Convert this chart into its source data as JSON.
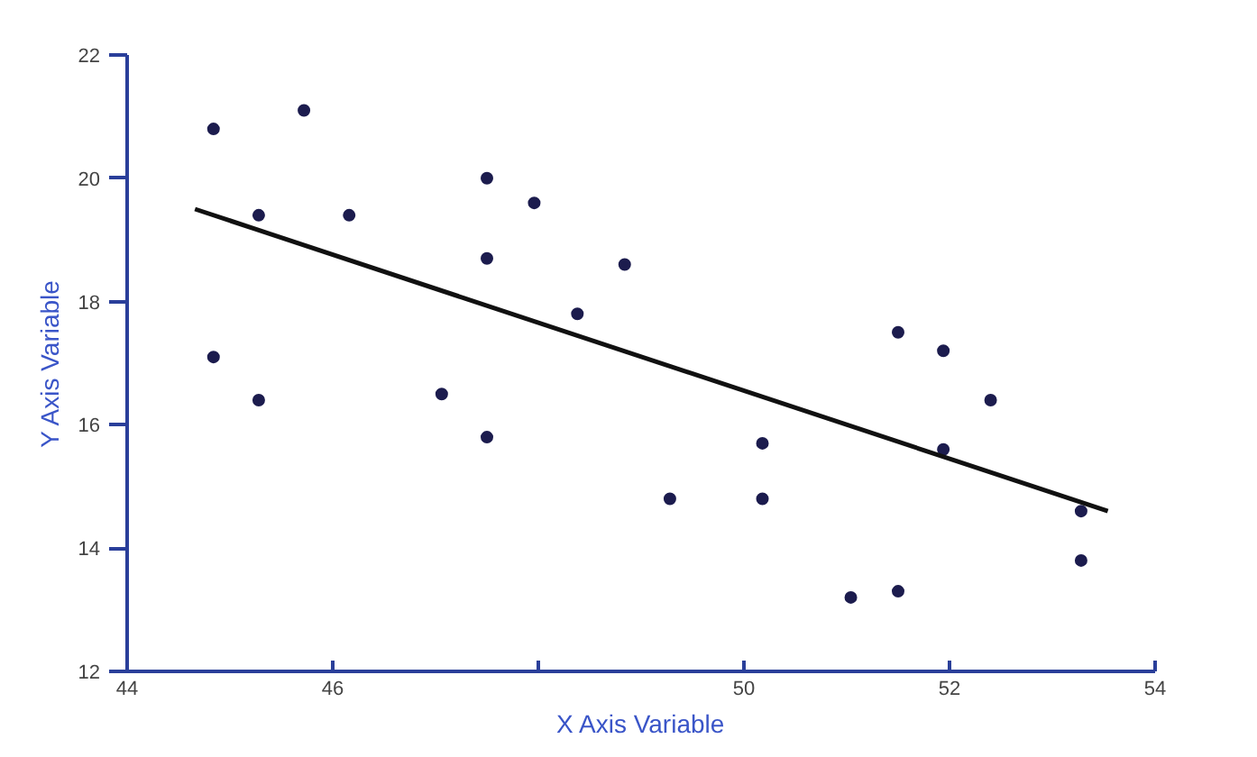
{
  "chart_data": {
    "type": "scatter",
    "xlabel": "X Axis Variable",
    "ylabel": "Y Axis Variable",
    "xlim": [
      44,
      54
    ],
    "xticks": [
      44,
      46,
      {
        "value": 48,
        "label": null
      },
      50,
      52,
      54
    ],
    "ylim": [
      12,
      22
    ],
    "yticks": [
      12,
      14,
      16,
      18,
      20,
      22
    ],
    "grid": false,
    "marker": "circle",
    "series": [
      {
        "color": "#1c1c4e",
        "x": [
          44.84,
          44.84,
          45.28,
          45.28,
          45.72,
          46.16,
          47.06,
          47.5,
          47.5,
          47.5,
          47.96,
          48.38,
          48.84,
          49.28,
          50.18,
          50.18,
          51.04,
          51.5,
          51.5,
          51.94,
          51.94,
          52.4,
          53.28,
          53.28
        ],
        "values": [
          20.8,
          17.1,
          19.4,
          16.4,
          21.1,
          19.4,
          16.5,
          20.0,
          18.7,
          15.8,
          19.6,
          17.8,
          18.6,
          14.8,
          15.7,
          14.8,
          13.2,
          17.5,
          13.3,
          17.2,
          15.6,
          16.4,
          14.6,
          13.8
        ]
      },
      {
        "type": "line",
        "color": "#111111",
        "x": [
          44.66,
          53.54
        ],
        "values": [
          19.5,
          14.6
        ],
        "marker": "none",
        "line_style": "solid"
      }
    ]
  }
}
